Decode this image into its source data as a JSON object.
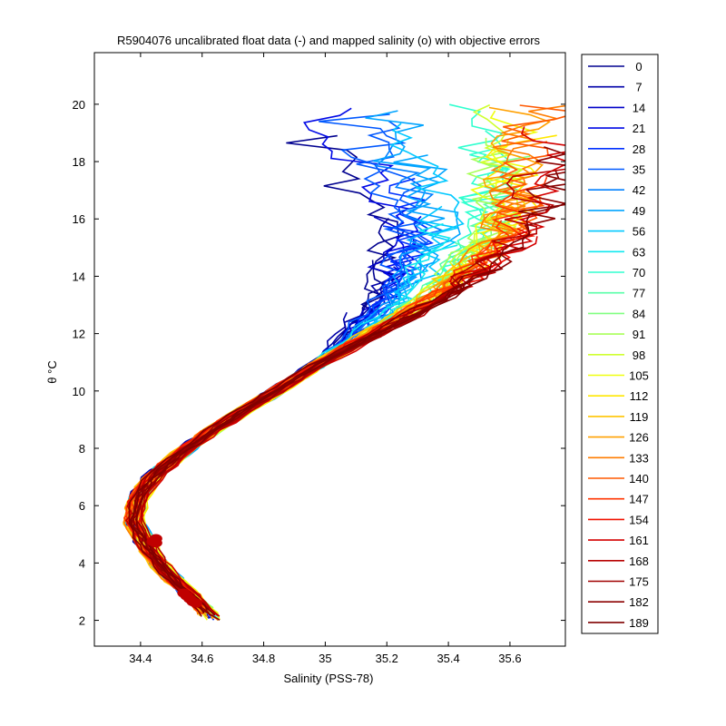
{
  "chart_data": {
    "type": "line",
    "title": "R5904076 uncalibrated float data (-) and mapped salinity (o) with objective errors",
    "xlabel": "Salinity (PSS-78)",
    "ylabel": "θ °C",
    "xlim": [
      34.25,
      35.78
    ],
    "ylim": [
      1.1,
      21.8
    ],
    "xticks": [
      "34.4",
      "34.6",
      "34.8",
      "35",
      "35.2",
      "35.4",
      "35.6"
    ],
    "yticks": [
      "2",
      "4",
      "6",
      "8",
      "10",
      "12",
      "14",
      "16",
      "18",
      "20"
    ],
    "grid": false,
    "legend_placement": "outside-right",
    "series": [
      {
        "name": "0",
        "color": "#00008f"
      },
      {
        "name": "7",
        "color": "#0000a8"
      },
      {
        "name": "14",
        "color": "#0000c8"
      },
      {
        "name": "21",
        "color": "#0008e6"
      },
      {
        "name": "28",
        "color": "#0030ff"
      },
      {
        "name": "35",
        "color": "#0058ff"
      },
      {
        "name": "42",
        "color": "#0080ff"
      },
      {
        "name": "49",
        "color": "#00a4ff"
      },
      {
        "name": "56",
        "color": "#00c8ff"
      },
      {
        "name": "63",
        "color": "#10e8ef"
      },
      {
        "name": "70",
        "color": "#30ffcf"
      },
      {
        "name": "77",
        "color": "#58ffa8"
      },
      {
        "name": "84",
        "color": "#80ff80"
      },
      {
        "name": "91",
        "color": "#a8ff58"
      },
      {
        "name": "98",
        "color": "#cfff30"
      },
      {
        "name": "105",
        "color": "#efff10"
      },
      {
        "name": "112",
        "color": "#ffe800"
      },
      {
        "name": "119",
        "color": "#ffc400"
      },
      {
        "name": "126",
        "color": "#ffa000"
      },
      {
        "name": "133",
        "color": "#ff7c00"
      },
      {
        "name": "140",
        "color": "#ff5800"
      },
      {
        "name": "147",
        "color": "#ff3400"
      },
      {
        "name": "154",
        "color": "#f01000"
      },
      {
        "name": "161",
        "color": "#d40000"
      },
      {
        "name": "168",
        "color": "#b80000"
      },
      {
        "name": "175",
        "color": "#a00000"
      },
      {
        "name": "182",
        "color": "#8c0000"
      },
      {
        "name": "189",
        "color": "#800000"
      }
    ],
    "mean_profile": [
      [
        34.64,
        2.0
      ],
      [
        34.56,
        2.9
      ],
      [
        34.48,
        3.7
      ],
      [
        34.42,
        4.6
      ],
      [
        34.38,
        5.4
      ],
      [
        34.39,
        6.2
      ],
      [
        34.44,
        7.0
      ],
      [
        34.54,
        7.9
      ],
      [
        34.66,
        8.8
      ],
      [
        34.78,
        9.6
      ],
      [
        34.9,
        10.4
      ],
      [
        35.02,
        11.2
      ],
      [
        35.12,
        11.9
      ],
      [
        35.22,
        12.6
      ],
      [
        35.3,
        13.2
      ],
      [
        35.36,
        13.8
      ],
      [
        35.42,
        14.5
      ],
      [
        35.5,
        15.4
      ]
    ],
    "mapped_salinity_points": [
      [
        34.44,
        4.75
      ],
      [
        34.45,
        4.85
      ],
      [
        34.45,
        4.7
      ],
      [
        34.54,
        2.95
      ],
      [
        34.55,
        2.85
      ],
      [
        34.56,
        2.75
      ],
      [
        34.57,
        2.65
      ],
      [
        34.58,
        2.6
      ]
    ]
  }
}
